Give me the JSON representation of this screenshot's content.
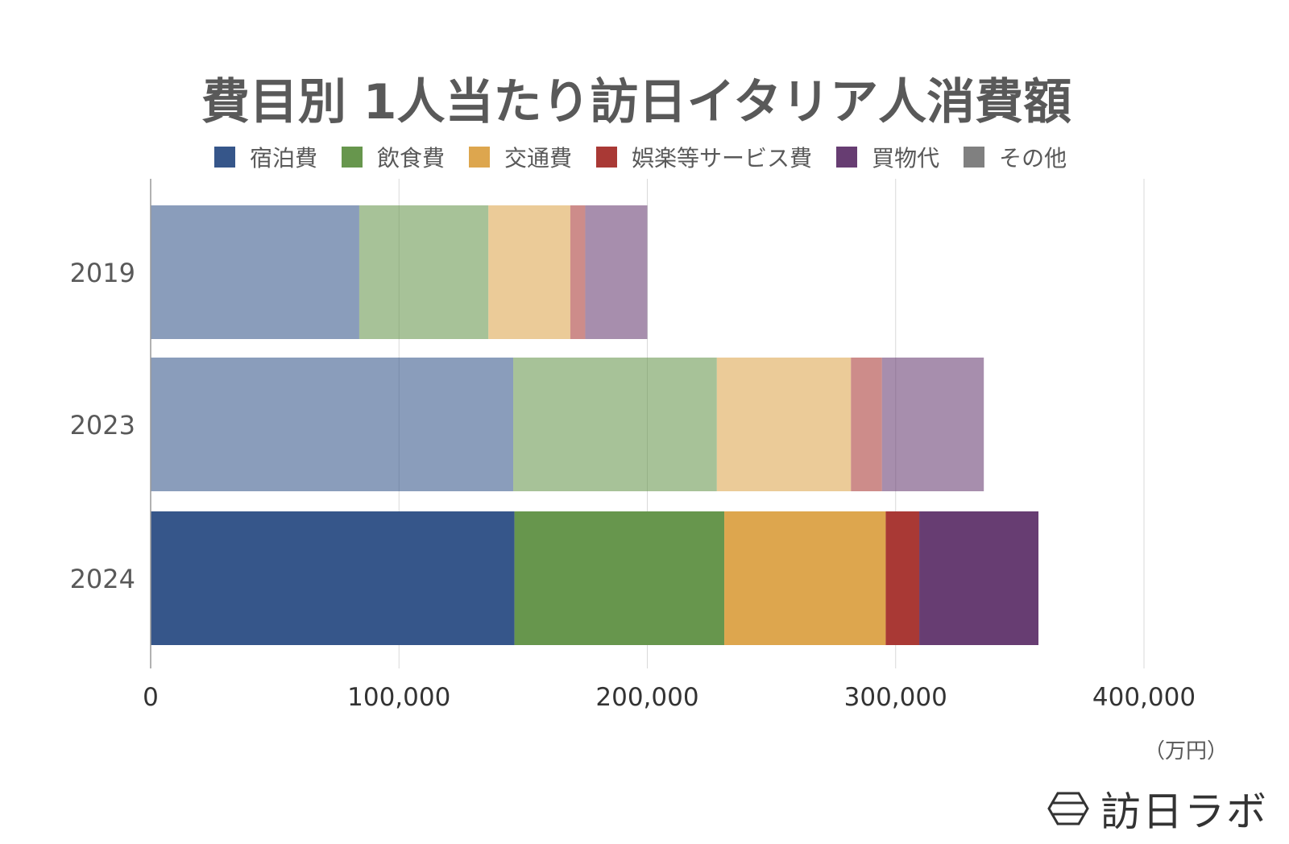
{
  "chart_data": {
    "type": "bar",
    "orientation": "horizontal",
    "stacked": true,
    "title": "費目別 1人当たり訪日イタリア人消費額",
    "unit": "（万円）",
    "categories": [
      "2019",
      "2023",
      "2024"
    ],
    "series": [
      {
        "name": "宿泊費",
        "color": "#36568A",
        "values": [
          84000,
          146000,
          146500
        ]
      },
      {
        "name": "飲食費",
        "color": "#67964D",
        "values": [
          52000,
          82000,
          84500
        ]
      },
      {
        "name": "交通費",
        "color": "#DDA64E",
        "values": [
          33000,
          54000,
          65000
        ]
      },
      {
        "name": "娯楽等サービス費",
        "color": "#A93935",
        "values": [
          6000,
          12500,
          13500
        ]
      },
      {
        "name": "買物代",
        "color": "#673D72",
        "values": [
          25000,
          41000,
          48000
        ]
      },
      {
        "name": "その他",
        "color": "#808080",
        "values": [
          0,
          0,
          0
        ]
      }
    ],
    "highlighted_category": "2024",
    "faded_opacity": 0.58,
    "xlim": [
      0,
      400000
    ],
    "xticks": [
      0,
      100000,
      200000,
      300000,
      400000
    ],
    "xtick_labels": [
      "0",
      "100,000",
      "200,000",
      "300,000",
      "400,000"
    ],
    "grid": true,
    "legend_position": "top"
  },
  "logo": {
    "text": "訪日ラボ",
    "icon": "hexagon-logo-icon"
  }
}
